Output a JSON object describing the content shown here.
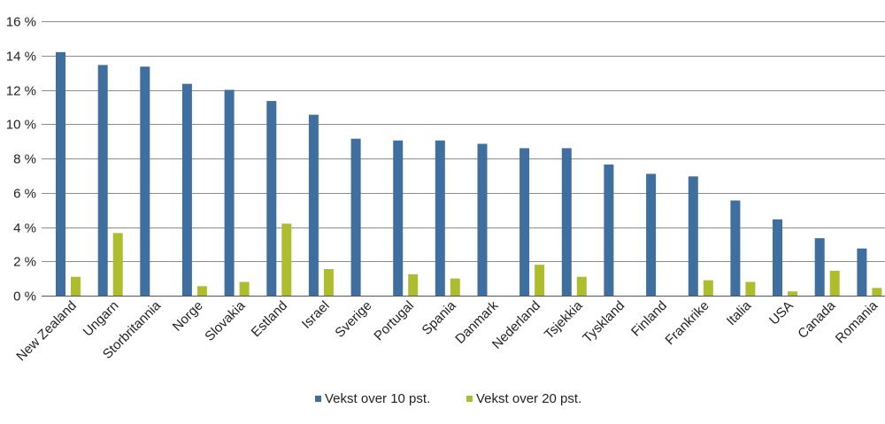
{
  "chart_data": {
    "type": "bar",
    "categories": [
      "New Zealand",
      "Ungarn",
      "Storbritannia",
      "Norge",
      "Slovakia",
      "Estland",
      "Israel",
      "Sverige",
      "Portugal",
      "Spania",
      "Danmark",
      "Nederland",
      "Tsjekkia",
      "Tyskland",
      "Finland",
      "Frankrike",
      "Italia",
      "USA",
      "Canada",
      "Romania"
    ],
    "series": [
      {
        "name": "Vekst over 10 pst.",
        "color": "#3e6f9e",
        "values": [
          14.2,
          13.45,
          13.35,
          12.35,
          12.0,
          11.35,
          10.55,
          9.15,
          9.05,
          9.05,
          8.85,
          8.6,
          8.6,
          7.65,
          7.1,
          6.95,
          5.55,
          4.45,
          3.35,
          2.75
        ]
      },
      {
        "name": "Vekst over 20 pst.",
        "color": "#aebd2e",
        "values": [
          1.1,
          3.65,
          0,
          0.55,
          0.8,
          4.2,
          1.55,
          0,
          1.25,
          1.0,
          0,
          1.8,
          1.1,
          0,
          0,
          0.9,
          0.8,
          0.25,
          1.45,
          0.45
        ]
      }
    ],
    "yticks": [
      "0 %",
      "2 %",
      "4 %",
      "6 %",
      "8 %",
      "10 %",
      "12 %",
      "14 %",
      "16 %"
    ],
    "ylim": [
      0,
      16
    ],
    "ystep": 2,
    "grid": true,
    "legend": "bottom-center",
    "title": "",
    "xlabel": "",
    "ylabel": ""
  }
}
